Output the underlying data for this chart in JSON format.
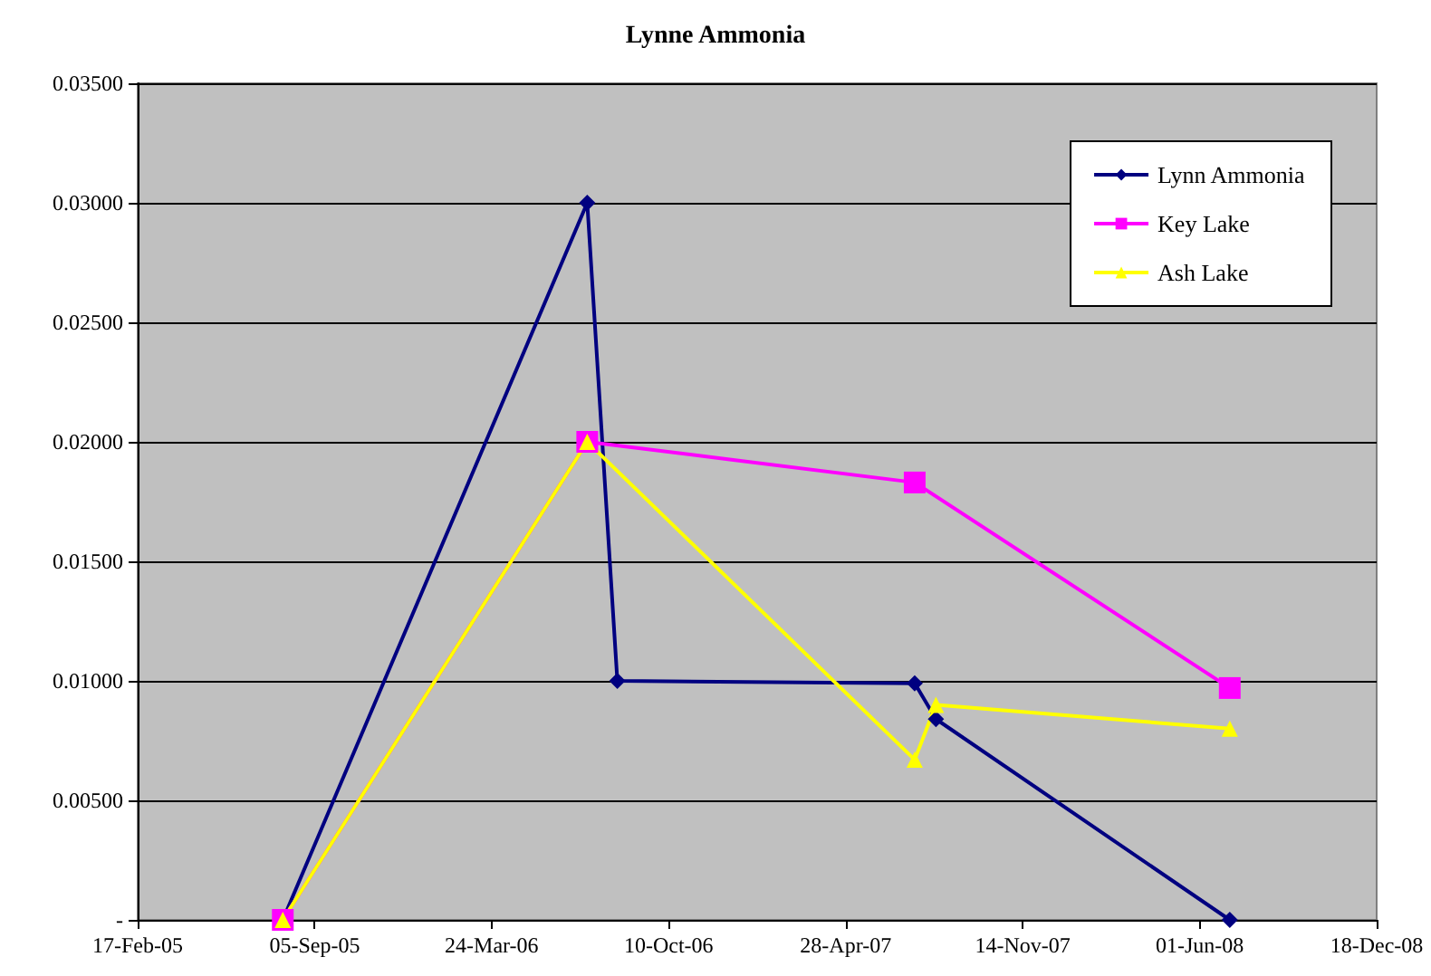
{
  "chart_data": {
    "type": "line",
    "title": "Lynne Ammonia",
    "xlim": [
      "2005-02-17",
      "2008-12-18"
    ],
    "xticks": [
      {
        "value": "2005-02-17",
        "label": "17-Feb-05"
      },
      {
        "value": "2005-09-05",
        "label": "05-Sep-05"
      },
      {
        "value": "2006-03-24",
        "label": "24-Mar-06"
      },
      {
        "value": "2006-10-10",
        "label": "10-Oct-06"
      },
      {
        "value": "2007-04-28",
        "label": "28-Apr-07"
      },
      {
        "value": "2007-11-14",
        "label": "14-Nov-07"
      },
      {
        "value": "2008-06-01",
        "label": "01-Jun-08"
      },
      {
        "value": "2008-12-18",
        "label": "18-Dec-08"
      }
    ],
    "ylim": [
      0,
      0.035
    ],
    "yticks": [
      {
        "value": 0,
        "label": "-"
      },
      {
        "value": 0.005,
        "label": "0.00500"
      },
      {
        "value": 0.01,
        "label": "0.01000"
      },
      {
        "value": 0.015,
        "label": "0.01500"
      },
      {
        "value": 0.02,
        "label": "0.02000"
      },
      {
        "value": 0.025,
        "label": "0.02500"
      },
      {
        "value": 0.03,
        "label": "0.03000"
      },
      {
        "value": 0.035,
        "label": "0.03500"
      }
    ],
    "grid": "y",
    "legend": "top right",
    "series": [
      {
        "name": "Lynn Ammonia",
        "color": "#000080",
        "marker": "diamond",
        "x": [
          "2005-07-31",
          "2006-07-10",
          "2006-08-13",
          "2007-07-15",
          "2007-08-08",
          "2008-07-05"
        ],
        "values": [
          0,
          0.03,
          0.01,
          0.0099,
          0.0084,
          0
        ]
      },
      {
        "name": "Key Lake",
        "color": "#ff00ff",
        "marker": "square",
        "x": [
          "2005-07-31",
          "2006-07-10",
          "2007-07-15",
          "2008-07-05"
        ],
        "values": [
          0,
          0.02,
          0.0183,
          0.0097
        ]
      },
      {
        "name": "Ash Lake",
        "color": "#ffff00",
        "marker": "triangle",
        "x": [
          "2005-07-31",
          "2006-07-10",
          "2007-07-15",
          "2007-08-08",
          "2008-07-05"
        ],
        "values": [
          0,
          0.02,
          0.0067,
          0.009,
          0.008
        ]
      }
    ]
  }
}
